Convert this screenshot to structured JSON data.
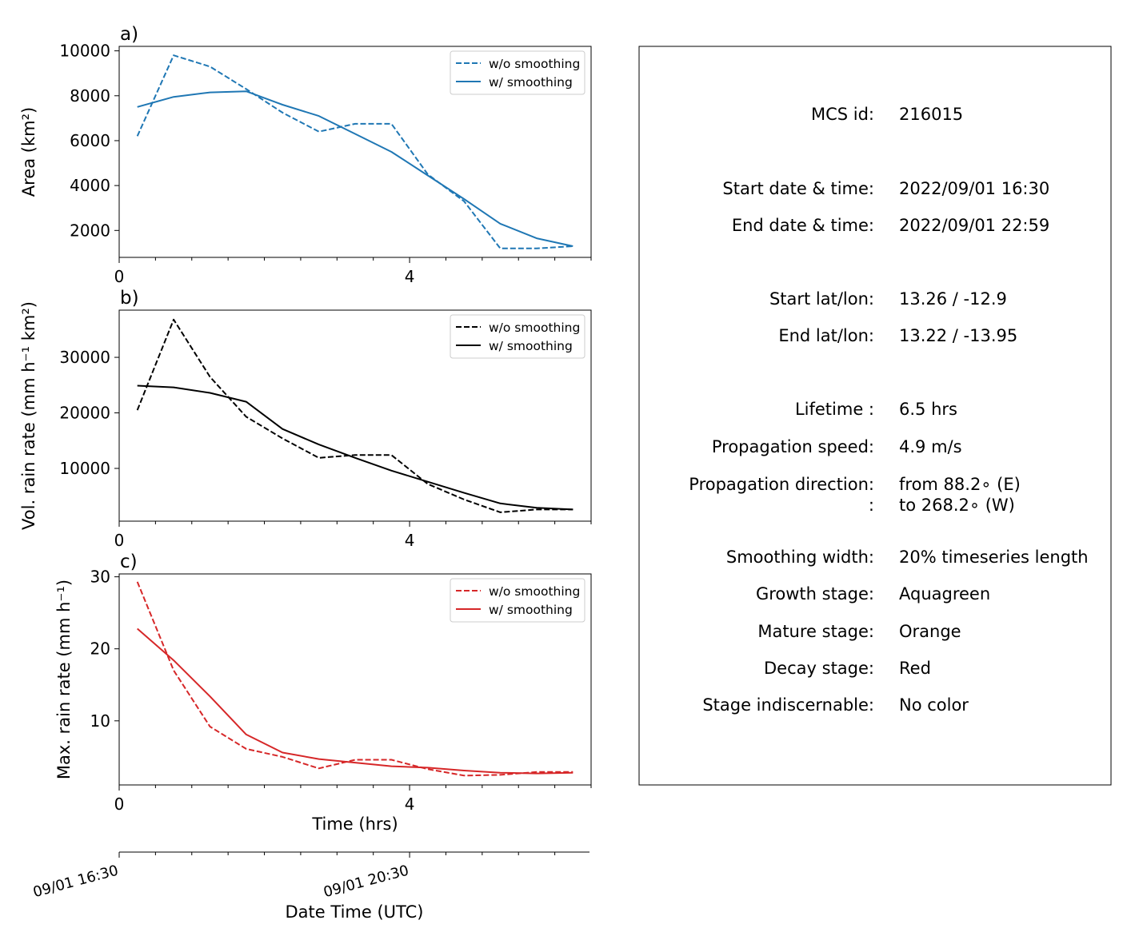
{
  "chart_data": [
    {
      "type": "line",
      "panel_label": "a)",
      "ylabel": "Area  (km²)",
      "xlim": [
        0,
        6.5
      ],
      "ylim": [
        800,
        10200
      ],
      "yticks": [
        "2000",
        "4000",
        "6000",
        "8000",
        "10000"
      ],
      "ytick_values": [
        2000,
        4000,
        6000,
        8000,
        10000
      ],
      "xticks": [
        "0",
        "4"
      ],
      "xtick_values": [
        0,
        4
      ],
      "color": "#1f77b4",
      "legend_placement": "top-right",
      "series": [
        {
          "name": "w/o smoothing",
          "style": "dashed",
          "x": [
            0.25,
            0.75,
            1.25,
            1.75,
            2.25,
            2.75,
            3.25,
            3.75,
            4.25,
            4.75,
            5.25,
            5.75,
            6.25
          ],
          "y": [
            6200,
            9800,
            9300,
            8300,
            7250,
            6400,
            6750,
            6750,
            4500,
            3300,
            1200,
            1200,
            1300
          ]
        },
        {
          "name": "w/ smoothing",
          "style": "solid",
          "x": [
            0.25,
            0.75,
            1.25,
            1.75,
            2.25,
            2.75,
            3.25,
            3.75,
            4.25,
            4.75,
            5.25,
            5.75,
            6.25
          ],
          "y": [
            7500,
            7950,
            8150,
            8200,
            7600,
            7100,
            6300,
            5500,
            4450,
            3400,
            2300,
            1650,
            1300
          ]
        }
      ]
    },
    {
      "type": "line",
      "panel_label": "b)",
      "ylabel": "Vol. rain rate (mm h⁻¹ km²)",
      "xlim": [
        0,
        6.5
      ],
      "ylim": [
        500,
        38500
      ],
      "yticks": [
        "10000",
        "20000",
        "30000"
      ],
      "ytick_values": [
        10000,
        20000,
        30000
      ],
      "xticks": [
        "0",
        "4"
      ],
      "xtick_values": [
        0,
        4
      ],
      "color": "#000000",
      "legend_placement": "top-right",
      "series": [
        {
          "name": "w/o smoothing",
          "style": "dashed",
          "x": [
            0.25,
            0.75,
            1.25,
            1.75,
            2.25,
            2.75,
            3.25,
            3.75,
            4.25,
            4.75,
            5.25,
            5.75,
            6.25
          ],
          "y": [
            20500,
            36800,
            26500,
            19300,
            15400,
            11900,
            12400,
            12400,
            7200,
            4400,
            2100,
            2600,
            2600
          ]
        },
        {
          "name": "w/ smoothing",
          "style": "solid",
          "x": [
            0.25,
            0.75,
            1.25,
            1.75,
            2.25,
            2.75,
            3.25,
            3.75,
            4.25,
            4.75,
            5.25,
            5.75,
            6.25
          ],
          "y": [
            24900,
            24600,
            23600,
            22000,
            17100,
            14300,
            11900,
            9600,
            7600,
            5600,
            3700,
            2900,
            2600
          ]
        }
      ]
    },
    {
      "type": "line",
      "panel_label": "c)",
      "ylabel": "Max. rain rate  (mm h⁻¹)",
      "xlabel": "Time (hrs)",
      "xlim": [
        0,
        6.5
      ],
      "ylim": [
        1.1,
        30.4
      ],
      "yticks": [
        "10",
        "20",
        "30"
      ],
      "ytick_values": [
        10,
        20,
        30
      ],
      "xticks": [
        "0",
        "4"
      ],
      "xtick_values": [
        0,
        4
      ],
      "color": "#d62728",
      "legend_placement": "top-right",
      "series": [
        {
          "name": "w/o smoothing",
          "style": "dashed",
          "x": [
            0.25,
            0.75,
            1.25,
            1.75,
            2.25,
            2.75,
            3.25,
            3.75,
            4.25,
            4.75,
            5.25,
            5.75,
            6.25
          ],
          "y": [
            29.3,
            17.0,
            9.2,
            6.1,
            5.0,
            3.4,
            4.6,
            4.6,
            3.3,
            2.4,
            2.5,
            2.9,
            2.9
          ]
        },
        {
          "name": "w/ smoothing",
          "style": "solid",
          "x": [
            0.25,
            0.75,
            1.25,
            1.75,
            2.25,
            2.75,
            3.25,
            3.75,
            4.25,
            4.75,
            5.25,
            5.75,
            6.25
          ],
          "y": [
            22.8,
            18.4,
            13.4,
            8.1,
            5.6,
            4.7,
            4.2,
            3.7,
            3.5,
            3.1,
            2.8,
            2.7,
            2.8
          ]
        }
      ]
    }
  ],
  "datetime_axis": {
    "xlabel": "Date Time (UTC)",
    "ticks": [
      {
        "label": "09/01 16:30",
        "hours": 0
      },
      {
        "label": "09/01 20:30",
        "hours": 4
      }
    ],
    "xlim_hours": [
      0,
      6.5
    ]
  },
  "info_panel": {
    "rows": [
      {
        "label": "MCS id:",
        "value": "216015"
      },
      {
        "label": "",
        "value": ""
      },
      {
        "label": "Start date & time:",
        "value": "2022/09/01 16:30"
      },
      {
        "label": "End date & time:",
        "value": "2022/09/01 22:59"
      },
      {
        "label": "",
        "value": ""
      },
      {
        "label": "Start lat/lon:",
        "value": "13.26 / -12.9"
      },
      {
        "label": "End lat/lon:",
        "value": "13.22 / -13.95"
      },
      {
        "label": "",
        "value": ""
      },
      {
        "label": "Lifetime :",
        "value": "6.5 hrs"
      },
      {
        "label": "Propagation speed:",
        "value": "4.9 m/s"
      },
      {
        "label": "Propagation direction:",
        "value": "from  88.2∘ (E)"
      },
      {
        "label": ":",
        "value": "to   268.2∘ (W)"
      },
      {
        "label": "",
        "value": ""
      },
      {
        "label": "Smoothing width:",
        "value": "20% timeseries length"
      },
      {
        "label": "Growth stage:",
        "value": "Aquagreen"
      },
      {
        "label": "Mature stage:",
        "value": "Orange"
      },
      {
        "label": "Decay stage:",
        "value": "Red"
      },
      {
        "label": "Stage indiscernable:",
        "value": "No color"
      }
    ]
  }
}
